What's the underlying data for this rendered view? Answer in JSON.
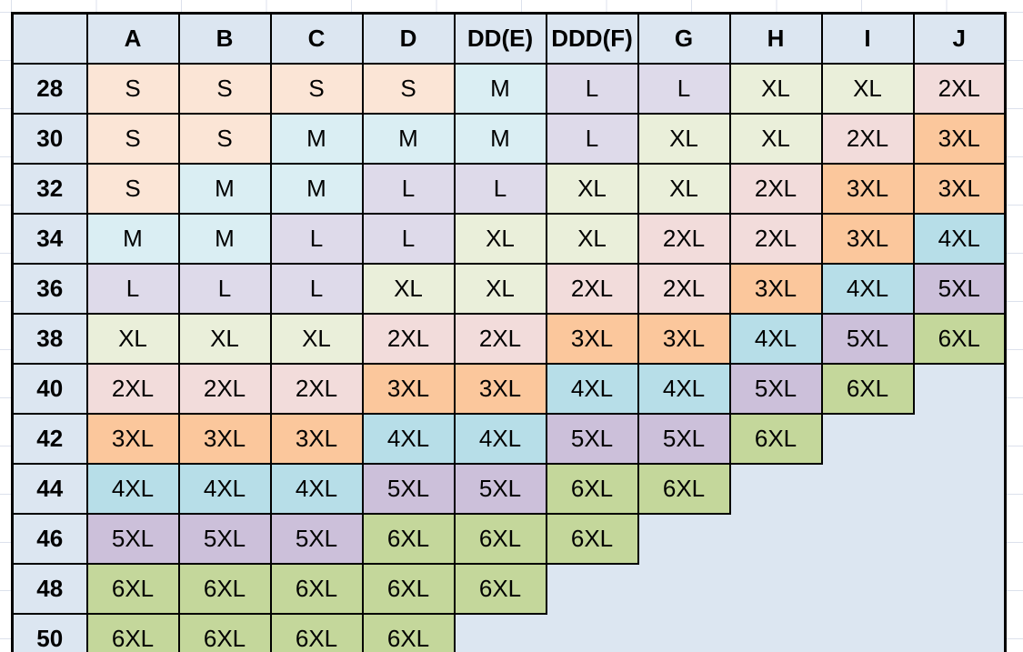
{
  "chart_data": {
    "type": "table",
    "columns": [
      "",
      "A",
      "B",
      "C",
      "D",
      "DD(E)",
      "DDD(F)",
      "G",
      "H",
      "I",
      "J"
    ],
    "rows": [
      {
        "band": "28",
        "cells": [
          "S",
          "S",
          "S",
          "S",
          "M",
          "L",
          "L",
          "XL",
          "XL",
          "2XL"
        ]
      },
      {
        "band": "30",
        "cells": [
          "S",
          "S",
          "M",
          "M",
          "M",
          "L",
          "XL",
          "XL",
          "2XL",
          "3XL"
        ]
      },
      {
        "band": "32",
        "cells": [
          "S",
          "M",
          "M",
          "L",
          "L",
          "XL",
          "XL",
          "2XL",
          "3XL",
          "3XL"
        ]
      },
      {
        "band": "34",
        "cells": [
          "M",
          "M",
          "L",
          "L",
          "XL",
          "XL",
          "2XL",
          "2XL",
          "3XL",
          "4XL"
        ]
      },
      {
        "band": "36",
        "cells": [
          "L",
          "L",
          "L",
          "XL",
          "XL",
          "2XL",
          "2XL",
          "3XL",
          "4XL",
          "5XL"
        ]
      },
      {
        "band": "38",
        "cells": [
          "XL",
          "XL",
          "XL",
          "2XL",
          "2XL",
          "3XL",
          "3XL",
          "4XL",
          "5XL",
          "6XL"
        ]
      },
      {
        "band": "40",
        "cells": [
          "2XL",
          "2XL",
          "2XL",
          "3XL",
          "3XL",
          "4XL",
          "4XL",
          "5XL",
          "6XL",
          ""
        ]
      },
      {
        "band": "42",
        "cells": [
          "3XL",
          "3XL",
          "3XL",
          "4XL",
          "4XL",
          "5XL",
          "5XL",
          "6XL",
          "",
          ""
        ]
      },
      {
        "band": "44",
        "cells": [
          "4XL",
          "4XL",
          "4XL",
          "5XL",
          "5XL",
          "6XL",
          "6XL",
          "",
          "",
          ""
        ]
      },
      {
        "band": "46",
        "cells": [
          "5XL",
          "5XL",
          "5XL",
          "6XL",
          "6XL",
          "6XL",
          "",
          "",
          "",
          ""
        ]
      },
      {
        "band": "48",
        "cells": [
          "6XL",
          "6XL",
          "6XL",
          "6XL",
          "6XL",
          "",
          "",
          "",
          "",
          ""
        ]
      },
      {
        "band": "50",
        "cells": [
          "6XL",
          "6XL",
          "6XL",
          "6XL",
          "",
          "",
          "",
          "",
          "",
          ""
        ]
      }
    ],
    "grid": true,
    "legend_position": "none"
  },
  "colors": {
    "header_bg": "#dce6f1",
    "row_header_bg": "#dce6f1",
    "empty_cell_bg": "#dce6f1",
    "table_border": "#000000",
    "sheet_gridline": "#dce1ec",
    "size_colors": {
      "S": "#fbe5d6",
      "M": "#daeef3",
      "L": "#dedaea",
      "XL": "#eaefda",
      "2XL": "#f2dcdb",
      "3XL": "#fbc79c",
      "4XL": "#b7dee8",
      "5XL": "#ccc0da",
      "6XL": "#c4d79b"
    }
  }
}
